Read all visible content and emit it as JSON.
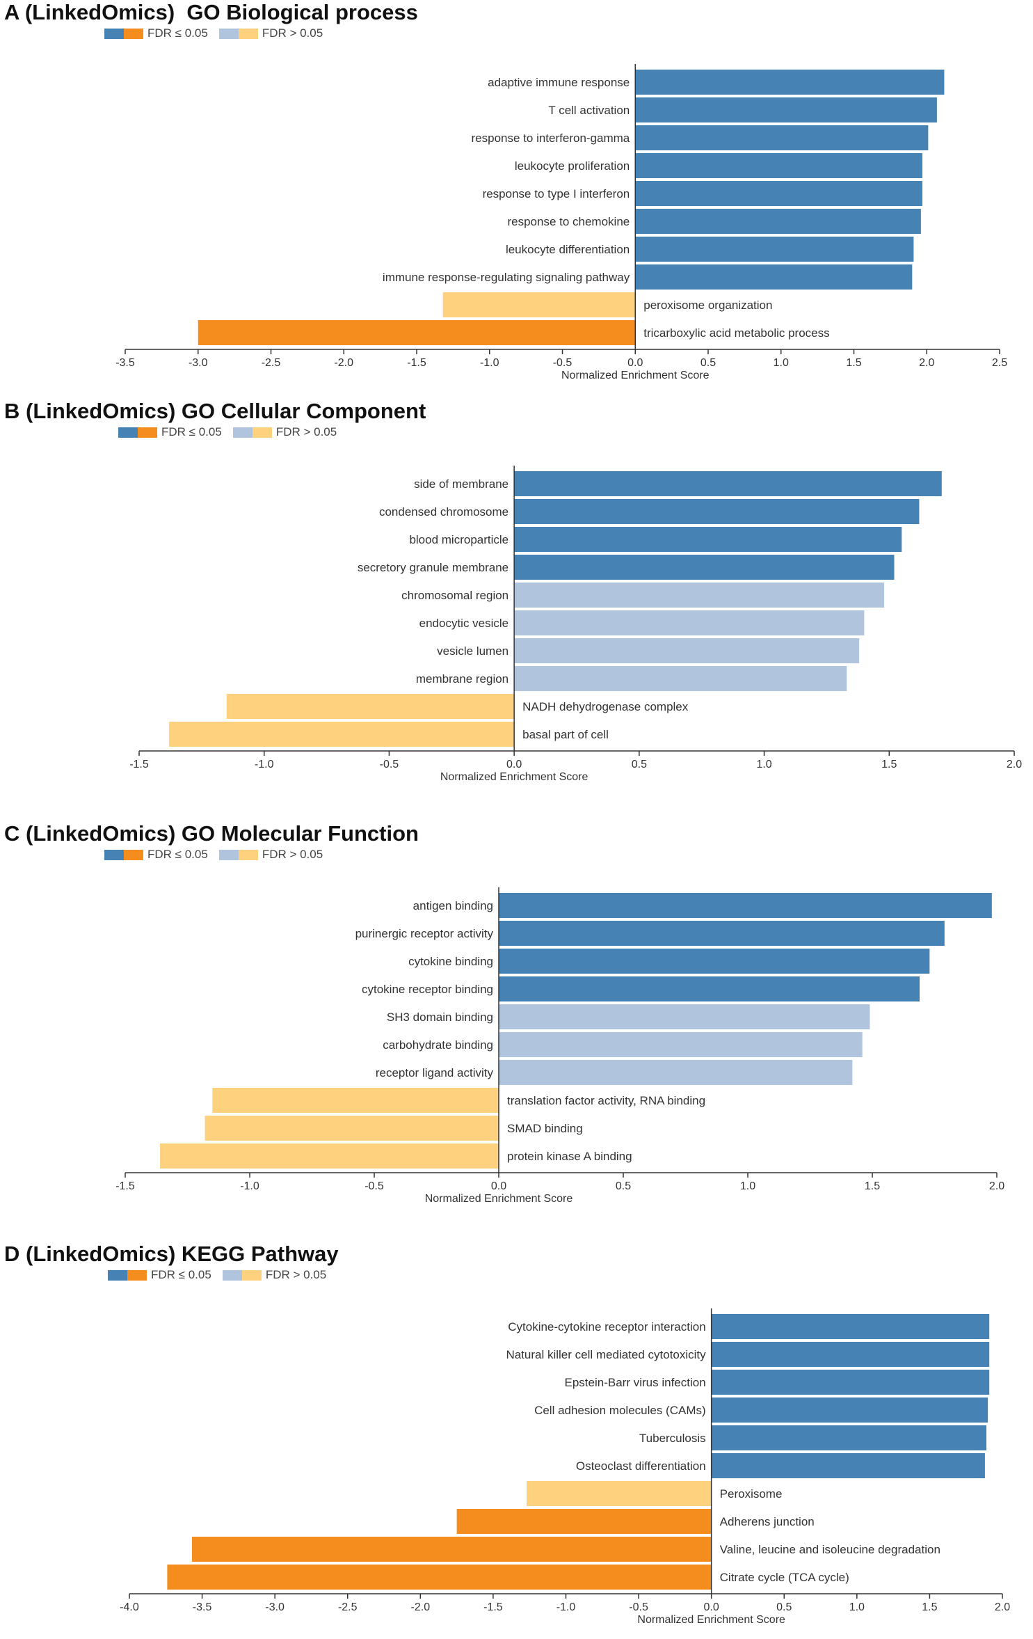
{
  "legend": {
    "sig_label": "FDR ≤ 0.05",
    "nonsig_label": "FDR > 0.05"
  },
  "colors": {
    "pos_sig": "#4682b4",
    "neg_sig": "#f58d1e",
    "pos_nonsig": "#b0c4de",
    "neg_nonsig": "#fdd17e"
  },
  "chart_data": [
    {
      "panel": "A",
      "type": "bar",
      "orientation": "horizontal",
      "title": "A (LinkedOmics)  GO Biological process",
      "xlabel": "Normalized Enrichment Score",
      "xlim": [
        -3.5,
        2.5
      ],
      "ticks": [
        "-3.5",
        "-3.0",
        "-2.5",
        "-2.0",
        "-1.5",
        "-1.0",
        "-0.5",
        "0.0",
        "0.5",
        "1.0",
        "1.5",
        "2.0",
        "2.5"
      ],
      "categories": [
        "adaptive immune response",
        "T cell activation",
        "response to interferon-gamma",
        "leukocyte proliferation",
        "response to type I interferon",
        "response to chemokine",
        "leukocyte differentiation",
        "immune response-regulating signaling pathway",
        "peroxisome organization",
        "tricarboxylic acid metabolic process"
      ],
      "values": [
        2.12,
        2.07,
        2.01,
        1.97,
        1.97,
        1.96,
        1.91,
        1.9,
        -1.32,
        -3.0
      ],
      "significant": [
        true,
        true,
        true,
        true,
        true,
        true,
        true,
        true,
        false,
        true
      ]
    },
    {
      "panel": "B",
      "type": "bar",
      "orientation": "horizontal",
      "title": "B (LinkedOmics) GO Cellular Component",
      "xlabel": "Normalized Enrichment Score",
      "xlim": [
        -1.5,
        2.0
      ],
      "ticks": [
        "-1.5",
        "-1.0",
        "-0.5",
        "0.0",
        "0.5",
        "1.0",
        "1.5",
        "2.0"
      ],
      "categories": [
        "side of membrane",
        "condensed chromosome",
        "blood microparticle",
        "secretory granule membrane",
        "chromosomal region",
        "endocytic vesicle",
        "vesicle lumen",
        "membrane region",
        "NADH dehydrogenase complex",
        "basal part of cell"
      ],
      "values": [
        1.71,
        1.62,
        1.55,
        1.52,
        1.48,
        1.4,
        1.38,
        1.33,
        -1.15,
        -1.38
      ],
      "significant": [
        true,
        true,
        true,
        true,
        false,
        false,
        false,
        false,
        false,
        false
      ]
    },
    {
      "panel": "C",
      "type": "bar",
      "orientation": "horizontal",
      "title": "C (LinkedOmics) GO Molecular Function",
      "xlabel": "Normalized Enrichment Score",
      "xlim": [
        -1.5,
        2.0
      ],
      "ticks": [
        "-1.5",
        "-1.0",
        "-0.5",
        "0.0",
        "0.5",
        "1.0",
        "1.5",
        "2.0"
      ],
      "categories": [
        "antigen binding",
        "purinergic receptor activity",
        "cytokine binding",
        "cytokine receptor binding",
        "SH3 domain binding",
        "carbohydrate binding",
        "receptor ligand activity",
        "translation factor activity, RNA binding",
        "SMAD binding",
        "protein kinase A binding"
      ],
      "values": [
        1.98,
        1.79,
        1.73,
        1.69,
        1.49,
        1.46,
        1.42,
        -1.15,
        -1.18,
        -1.36
      ],
      "significant": [
        true,
        true,
        true,
        true,
        false,
        false,
        false,
        false,
        false,
        false
      ]
    },
    {
      "panel": "D",
      "type": "bar",
      "orientation": "horizontal",
      "title": "D (LinkedOmics) KEGG Pathway",
      "xlabel": "Normalized Enrichment Score",
      "xlim": [
        -4.0,
        2.0
      ],
      "ticks": [
        "-4.0",
        "-3.5",
        "-3.0",
        "-2.5",
        "-2.0",
        "-1.5",
        "-1.0",
        "-0.5",
        "0.0",
        "0.5",
        "1.0",
        "1.5",
        "2.0"
      ],
      "categories": [
        "Cytokine-cytokine receptor interaction",
        "Natural killer cell mediated cytotoxicity",
        "Epstein-Barr virus infection",
        "Cell adhesion molecules (CAMs)",
        "Tuberculosis",
        "Osteoclast differentiation",
        "Peroxisome",
        "Adherens junction",
        "Valine, leucine and isoleucine degradation",
        "Citrate cycle (TCA cycle)"
      ],
      "values": [
        1.91,
        1.91,
        1.91,
        1.9,
        1.89,
        1.88,
        -1.27,
        -1.75,
        -3.57,
        -3.74
      ],
      "significant": [
        true,
        true,
        true,
        true,
        true,
        true,
        false,
        true,
        true,
        true
      ]
    }
  ]
}
